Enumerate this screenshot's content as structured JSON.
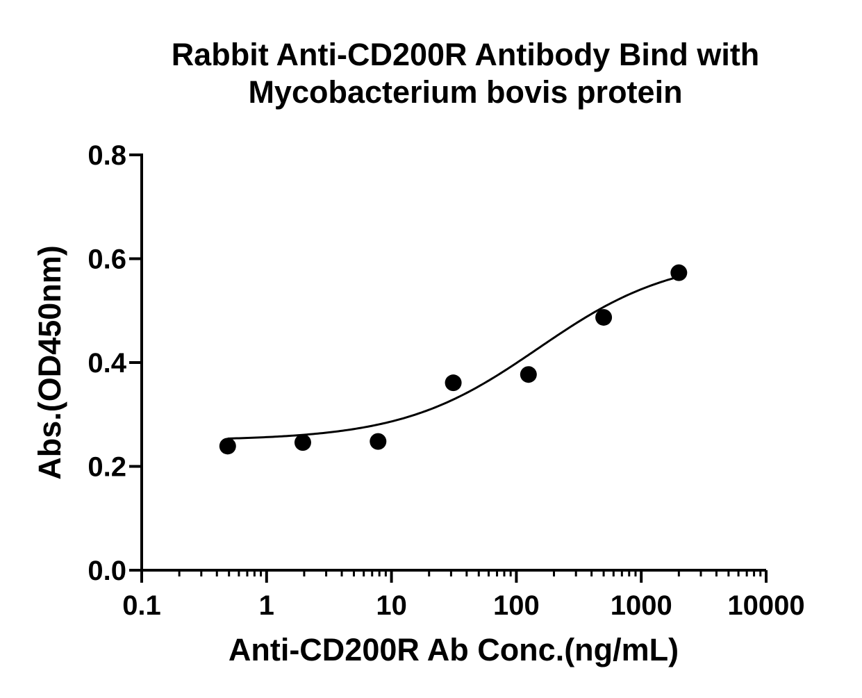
{
  "chart_data": {
    "type": "scatter",
    "title": [
      "Rabbit Anti-CD200R Antibody Bind with",
      "Mycobacterium bovis protein"
    ],
    "xlabel": "Anti-CD200R Ab Conc.(ng/mL)",
    "ylabel": "Abs.(OD450nm)",
    "x_scale": "log",
    "xlim": [
      0.1,
      10000
    ],
    "ylim": [
      0,
      0.8
    ],
    "x_ticks": [
      0.1,
      1,
      10,
      100,
      1000,
      10000
    ],
    "x_tick_labels": [
      "0.1",
      "1",
      "10",
      "100",
      "1000",
      "10000"
    ],
    "y_ticks": [
      0.0,
      0.2,
      0.4,
      0.6,
      0.8
    ],
    "y_tick_labels": [
      "0.0",
      "0.2",
      "0.4",
      "0.6",
      "0.8"
    ],
    "grid": false,
    "series": [
      {
        "x": [
          0.488,
          1.95,
          7.81,
          31.25,
          125,
          500,
          2000
        ],
        "y": [
          0.239,
          0.246,
          0.248,
          0.361,
          0.377,
          0.487,
          0.573
        ]
      }
    ],
    "fit_curve": {
      "type": "4PL",
      "bottom": 0.25,
      "top": 0.605,
      "ec50": 150,
      "hill": 0.8,
      "x_range": [
        0.488,
        2000
      ]
    },
    "marker_color": "#000000",
    "line_color": "#000000"
  }
}
